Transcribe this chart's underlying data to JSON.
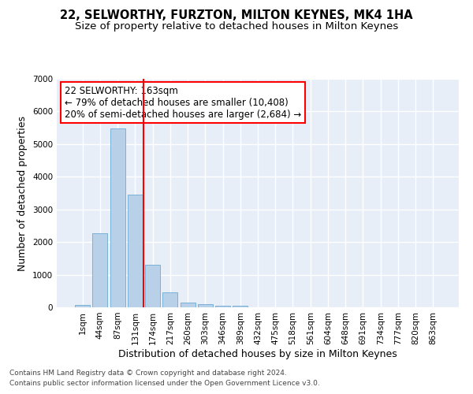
{
  "title": "22, SELWORTHY, FURZTON, MILTON KEYNES, MK4 1HA",
  "subtitle": "Size of property relative to detached houses in Milton Keynes",
  "xlabel": "Distribution of detached houses by size in Milton Keynes",
  "ylabel": "Number of detached properties",
  "bar_color": "#b8d0e8",
  "bar_edge_color": "#6aaad4",
  "background_color": "#e8eef8",
  "grid_color": "#ffffff",
  "categories": [
    "1sqm",
    "44sqm",
    "87sqm",
    "131sqm",
    "174sqm",
    "217sqm",
    "260sqm",
    "303sqm",
    "346sqm",
    "389sqm",
    "432sqm",
    "475sqm",
    "518sqm",
    "561sqm",
    "604sqm",
    "648sqm",
    "691sqm",
    "734sqm",
    "777sqm",
    "820sqm",
    "863sqm"
  ],
  "values": [
    80,
    2280,
    5480,
    3450,
    1310,
    470,
    155,
    90,
    55,
    40,
    0,
    0,
    0,
    0,
    0,
    0,
    0,
    0,
    0,
    0,
    0
  ],
  "red_line_x": 3.5,
  "annotation_text": "22 SELWORTHY: 163sqm\n← 79% of detached houses are smaller (10,408)\n20% of semi-detached houses are larger (2,684) →",
  "ylim": [
    0,
    7000
  ],
  "yticks": [
    0,
    1000,
    2000,
    3000,
    4000,
    5000,
    6000,
    7000
  ],
  "footer1": "Contains HM Land Registry data © Crown copyright and database right 2024.",
  "footer2": "Contains public sector information licensed under the Open Government Licence v3.0.",
  "title_fontsize": 10.5,
  "subtitle_fontsize": 9.5,
  "ylabel_fontsize": 9,
  "xlabel_fontsize": 9,
  "tick_fontsize": 7.5,
  "annotation_fontsize": 8.5,
  "footer_fontsize": 6.5
}
